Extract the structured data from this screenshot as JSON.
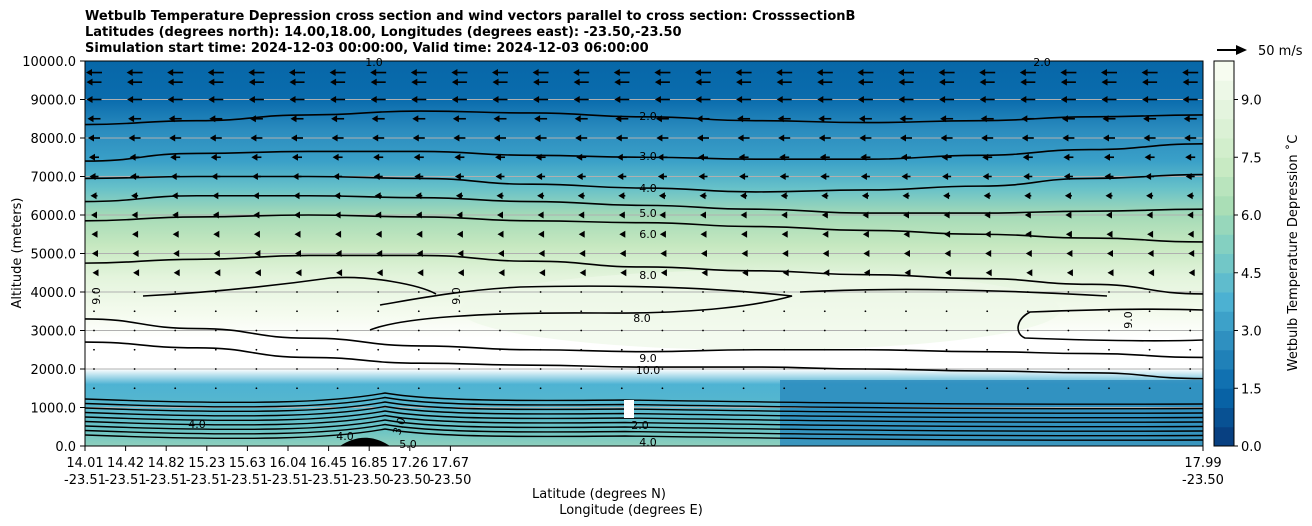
{
  "chart_data": {
    "type": "heatmap",
    "title_lines": [
      "Wetbulb Temperature Depression cross section and wind vectors parallel to cross section: CrosssectionB",
      "Latitudes (degrees north): 14.00,18.00, Longitudes (degrees east): -23.50,-23.50",
      "Simulation start time: 2024-12-03 00:00:00, Valid time: 2024-12-03 06:00:00"
    ],
    "ylabel": "Altitude (meters)",
    "xlabel_lat": "Latitude (degrees N)",
    "xlabel_lon": "Longitude (degrees E)",
    "ylim": [
      0,
      10000
    ],
    "y_ticks": [
      "0.0",
      "1000.0",
      "2000.0",
      "3000.0",
      "4000.0",
      "5000.0",
      "6000.0",
      "7000.0",
      "8000.0",
      "9000.0",
      "10000.0"
    ],
    "x_ticks": [
      {
        "lat": "14.01",
        "lon": "-23.51"
      },
      {
        "lat": "14.42",
        "lon": "-23.51"
      },
      {
        "lat": "14.82",
        "lon": "-23.51"
      },
      {
        "lat": "15.23",
        "lon": "-23.51"
      },
      {
        "lat": "15.63",
        "lon": "-23.51"
      },
      {
        "lat": "16.04",
        "lon": "-23.51"
      },
      {
        "lat": "16.45",
        "lon": "-23.51"
      },
      {
        "lat": "16.85",
        "lon": "-23.50"
      },
      {
        "lat": "17.26",
        "lon": "-23.50"
      },
      {
        "lat": "17.67",
        "lon": "-23.50"
      },
      {
        "lat": "17.99",
        "lon": "-23.50"
      }
    ],
    "colorbar": {
      "label": "Wetbulb Temperature Depression ˚C",
      "range": [
        0,
        10
      ],
      "ticks": [
        "0.0",
        "1.5",
        "3.0",
        "4.5",
        "6.0",
        "7.5",
        "9.0"
      ],
      "colors": [
        "#084081",
        "#0868ac",
        "#2b8cbe",
        "#4eb3d3",
        "#7bccc4",
        "#a8ddb5",
        "#ccebc5",
        "#e0f3db",
        "#f7fcf0"
      ]
    },
    "wind_key": {
      "label": "50 m/s"
    },
    "grid": true,
    "contour_labels": [
      "1.0",
      "2.0",
      "3.0",
      "4.0",
      "5.0",
      "6.0",
      "8.0",
      "8.0",
      "9.0",
      "10.0",
      "9.0",
      "9.0",
      "9.0",
      "4.0",
      "4.0",
      "3.0",
      "2.0",
      "5.0",
      "4.0",
      "2.0"
    ],
    "contour_profiles": [
      {
        "level": "2.0",
        "alt": [
          8350,
          8450,
          8600,
          8700,
          8650,
          8550,
          8450,
          8400,
          8450,
          8550,
          8600
        ]
      },
      {
        "level": "3.0",
        "alt": [
          7400,
          7600,
          7650,
          7650,
          7550,
          7500,
          7450,
          7450,
          7550,
          7700,
          7850
        ]
      },
      {
        "level": "4.0",
        "alt": [
          6950,
          7000,
          7000,
          6950,
          6800,
          6700,
          6600,
          6650,
          6750,
          6950,
          7050
        ]
      },
      {
        "level": "5.0",
        "alt": [
          6350,
          6500,
          6500,
          6450,
          6350,
          6250,
          6150,
          6050,
          6050,
          6100,
          6150
        ]
      },
      {
        "level": "6.0",
        "alt": [
          5850,
          5950,
          6000,
          5950,
          5850,
          5800,
          5700,
          5600,
          5500,
          5400,
          5300
        ]
      },
      {
        "level": "8.0",
        "alt": [
          4750,
          4850,
          4950,
          4950,
          4800,
          4650,
          4550,
          4450,
          4350,
          4200,
          3950
        ]
      },
      {
        "level": "9.0",
        "alt": [
          3300,
          3050,
          2800,
          2600,
          2500,
          2450,
          2500,
          2500,
          2450,
          2400,
          2300
        ]
      },
      {
        "level": "10.0",
        "alt": [
          2700,
          2550,
          2300,
          2150,
          2100,
          2050,
          2050,
          2000,
          1950,
          1900,
          1750
        ]
      }
    ]
  }
}
